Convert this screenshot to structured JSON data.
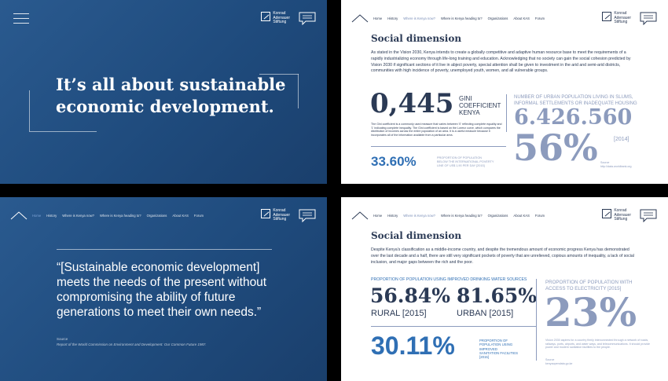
{
  "logo": {
    "lines": [
      "Konrad",
      "Adenauer",
      "Stiftung"
    ]
  },
  "icons": {
    "chat": "chat-bubble-icon",
    "home": "home-roof-icon",
    "menu": "hamburger-menu-icon"
  },
  "nav": {
    "home": "Home",
    "history": "History",
    "now": "Where is Kenya now?",
    "heading": "Where is Kenya heading to?",
    "orgs": "Organizations",
    "about": "About KAS",
    "forum": "Forum"
  },
  "slide1": {
    "line1": "It’s all about sustainable",
    "line2": "economic development."
  },
  "slide2": {
    "title": "Social dimension",
    "body": "As stated in the Vision 2030, Kenya intends to create a globally competitive and adaptive human resource base to meet the requirements of a rapidly industrializing economy through life-long training and education. Acknowledging that no society can gain the social cohesion predicted by Vision 2030 if significant sections of it live in abject poverty, special attention shall be given to investment in the arid and semi-arid districts, communities with high incidence of poverty, unemployed youth, women, and all vulnerable groups.",
    "gini_value": "0,445",
    "gini_label1": "GINI",
    "gini_label2": "COEFFICIENT",
    "gini_label3": "KENYA",
    "gini_note": "The Gini coefficient is a commonly used measure that varies between '0' reflecting complete equality and '1' indicating complete inequality. The Gini coefficient is based on the Lorenz curve, which compares the distribution of incomes across the entire population of an area. It is a useful measure because it incorporates all of the information available from a particular area.",
    "urban_label1": "NUMBER OF URBAN POPULATION LIVING IN SLUMS,",
    "urban_label2": "INFORMAL SETTLEMENTS OR INADEQUATE HOUSING",
    "urban_value": "6.426.560",
    "urban_year": "[2014]",
    "slum_pct": "56%",
    "poverty_value": "33.60%",
    "poverty_label1": "PROPORTION OF POPULATION",
    "poverty_label2": "BELOW THE INTERNATIONAL POVERTY",
    "poverty_label3": "LINE OF US$ 1,90 PER DAY [2015]",
    "source_label": "Source",
    "source_text": "http://data.worldbank.org"
  },
  "slide3": {
    "quote": "“[Sustainable economic development] meets the needs of the present without compromising the ability of future generations to meet their own needs.”",
    "source_label": "Source",
    "source_text": "Report of the World Commission on Environment and Development: Our Common Future 1987."
  },
  "slide4": {
    "title": "Social dimension",
    "body": "Despite Kenya’s classification as a middle-income country, and despite the tremendous amount of economic progress Kenya has demonstrated over the last decade and a half, there are still very significant pockets of poverty that are unrelieved, copious amounts of inequality, a lack of social inclusion, and major gaps between the rich and the poor.",
    "water_label": "PROPORTION OF POPULATION USING IMPROVED DRINKING WATER SOURCES",
    "rural_value": "56.84%",
    "rural_label": "RURAL [2015]",
    "urban_value": "81.65%",
    "urban_label": "URBAN [2015]",
    "elec_label1": "PROPORTION OF POPULATION WITH",
    "elec_label2": "ACCESS TO ELECTRICITY [2015]",
    "elec_value": "23%",
    "elec_note": "Vision 2030 aspires for a country firmly interconnected through a network of roads, railways, ports, airports, and water ways, and telecommunications. It should provide power and modern sanitation facilities to the people.",
    "sanit_value": "30.11%",
    "sanit_label1": "PROPORTION OF",
    "sanit_label2": "POPULATION USING",
    "sanit_label3": "IMPROVED",
    "sanit_label4": "SANITATION FACILITIES",
    "sanit_label5": "[2015]",
    "source_label": "Source",
    "source_text": "kenyaopendata.go.ke"
  }
}
